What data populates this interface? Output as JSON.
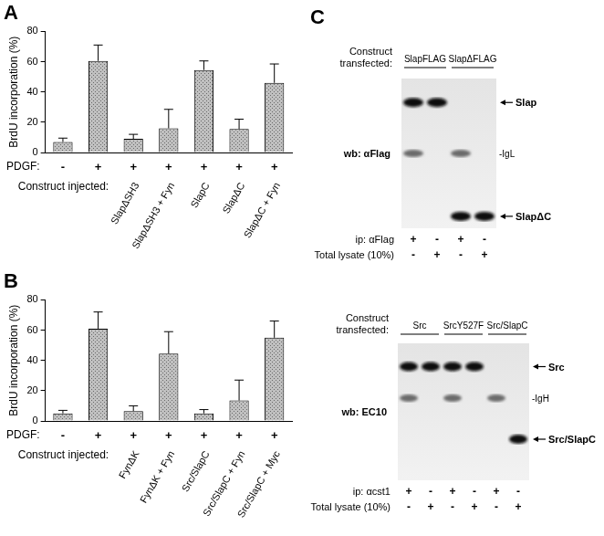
{
  "chart_data": [
    {
      "type": "bar",
      "title": "A",
      "y_label": "BrdU incorporation (%)",
      "row_labels": [
        "PDGF:",
        "Construct injected:"
      ],
      "pdgf": [
        "-",
        "+",
        "+",
        "+",
        "+",
        "+",
        "+"
      ],
      "categories": [
        null,
        null,
        "SlapΔSH3",
        "SlapΔSH3 + Fyn",
        "SlapC",
        "SlapΔC",
        "SlapΔC + Fyn"
      ],
      "values": [
        7,
        60.5,
        9,
        16,
        54.5,
        15.5,
        46
      ],
      "errors": [
        2.5,
        10.5,
        3,
        12.5,
        6,
        6.5,
        12.5
      ],
      "color": "#c0c0c0",
      "ylim": [
        0,
        80
      ],
      "yticks": [
        0,
        20,
        40,
        60,
        80
      ],
      "grid": false
    },
    {
      "type": "bar",
      "title": "B",
      "y_label": "BrdU incorporation (%)",
      "row_labels": [
        "PDGF:",
        "Construct injected:"
      ],
      "pdgf": [
        "-",
        "+",
        "+",
        "+",
        "+",
        "+",
        "+"
      ],
      "categories": [
        null,
        null,
        "FynΔK",
        "FynΔK + Fyn",
        "Src/SlapC",
        "Src/SlapC + Fyn",
        "Src/SlapC + Myc"
      ],
      "values": [
        5,
        61,
        6.5,
        44.5,
        5,
        13.5,
        55
      ],
      "errors": [
        2,
        11,
        3.5,
        14.5,
        2.5,
        13.5,
        11
      ],
      "color": "#c0c0c0",
      "ylim": [
        0,
        80
      ],
      "yticks": [
        0,
        20,
        40,
        60,
        80
      ],
      "grid": false
    }
  ],
  "panel_c": {
    "title": "C",
    "blots": [
      {
        "construct_label": "Construct transfected:",
        "groups": [
          {
            "name": "SlapFLAG",
            "lanes": 2
          },
          {
            "name": "SlapΔFLAG",
            "lanes": 2
          }
        ],
        "wb": "wb: αFlag",
        "markers": [
          {
            "label": "Slap",
            "arrow": true
          },
          {
            "label": "-IgL",
            "arrow": false
          },
          {
            "label": "SlapΔC",
            "arrow": true
          }
        ],
        "lanes": [
          [
            0,
            1
          ],
          [
            0
          ],
          [
            1,
            2
          ],
          [
            2
          ]
        ],
        "rows": [
          {
            "label": "ip: αFlag",
            "signs": [
              "+",
              "-",
              "+",
              "-"
            ]
          },
          {
            "label": "Total lysate (10%)",
            "signs": [
              "-",
              "+",
              "-",
              "+"
            ]
          }
        ]
      },
      {
        "construct_label": "Construct transfected:",
        "groups": [
          {
            "name": "Src",
            "lanes": 2
          },
          {
            "name": "SrcY527F",
            "lanes": 2
          },
          {
            "name": "Src/SlapC",
            "lanes": 2
          }
        ],
        "wb": "wb: EC10",
        "markers": [
          {
            "label": "Src",
            "arrow": true
          },
          {
            "label": "-IgH",
            "arrow": false
          },
          {
            "label": "Src/SlapC",
            "arrow": true
          }
        ],
        "lanes": [
          [
            0,
            1
          ],
          [
            0
          ],
          [
            0,
            1
          ],
          [
            0
          ],
          [
            1
          ],
          [
            2
          ]
        ],
        "rows": [
          {
            "label": "ip: αcst1",
            "signs": [
              "+",
              "-",
              "+",
              "-",
              "+",
              "-"
            ]
          },
          {
            "label": "Total lysate (10%)",
            "signs": [
              "-",
              "+",
              "-",
              "+",
              "-",
              "+"
            ]
          }
        ]
      }
    ]
  }
}
